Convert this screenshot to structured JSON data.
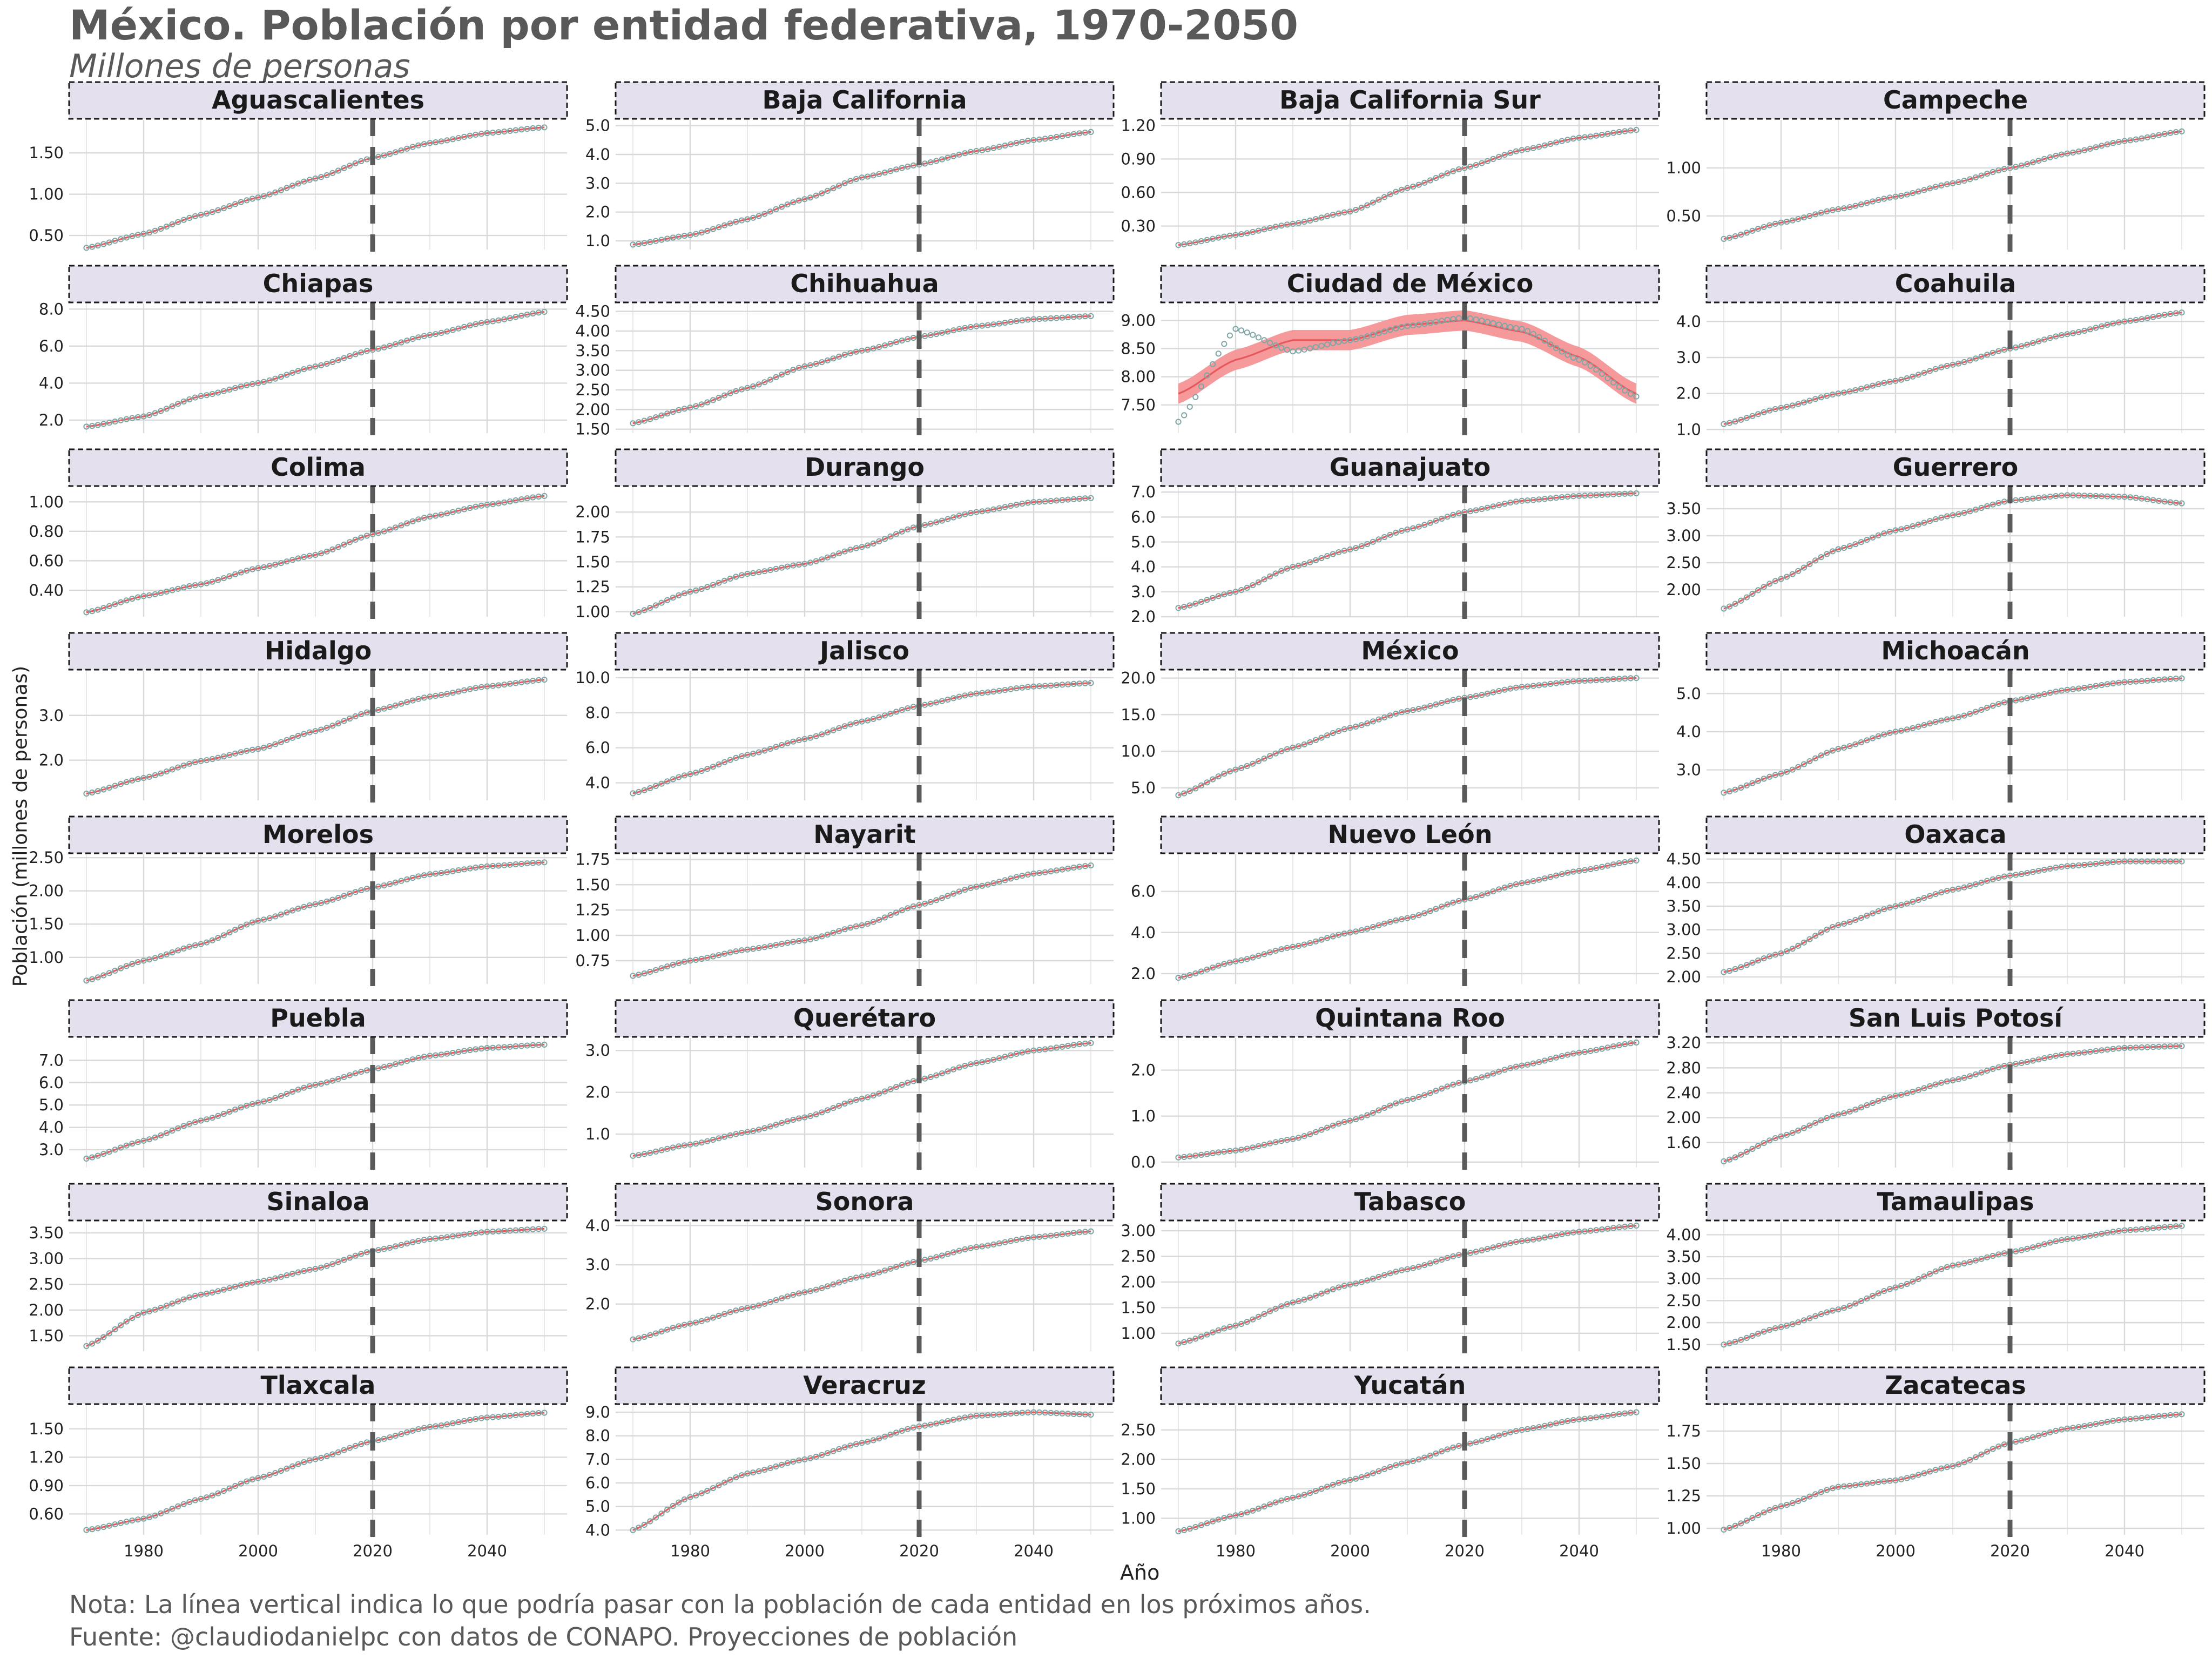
{
  "title": "México. Población por entidad federativa, 1970-2050",
  "subtitle": "Millones de personas",
  "note": "Nota: La línea vertical indica lo que podría pasar con la población de cada entidad en los próximos años.",
  "source": "Fuente: @claudiodanielpc con datos de CONAPO. Proyecciones de población",
  "colors": {
    "point": "#7fa6a6",
    "smooth": "#e8585b",
    "band": "#f49396",
    "vline": "#5a5a5a",
    "strip_fill": "#e5e0ee",
    "strip_border": "#1a1a1a",
    "grid": "#d9d9d9",
    "text": "#595959"
  },
  "chart_data": {
    "type": "line",
    "facet_layout": "4 columns x 8 rows",
    "xlabel": "Año",
    "ylabel": "Población (millones de personas)",
    "xlim": [
      1970,
      2050
    ],
    "x_ticks": [
      1980,
      2000,
      2020,
      2040
    ],
    "x_tick_labels": [
      "1980",
      "2000",
      "2020",
      "2040"
    ],
    "vline_x": 2020,
    "point_shape": "open-circle",
    "smooth_line": true,
    "series_x": [
      1970,
      1980,
      1990,
      2000,
      2010,
      2020,
      2030,
      2040,
      2050
    ],
    "panels": [
      {
        "name": "Aguascalientes",
        "ylim": [
          0.33,
          1.9
        ],
        "yticks": [
          0.5,
          1.0,
          1.5
        ],
        "ytick_labels": [
          "0.50",
          "1.00",
          "1.50"
        ],
        "values": [
          0.35,
          0.52,
          0.75,
          0.96,
          1.19,
          1.44,
          1.62,
          1.74,
          1.81
        ]
      },
      {
        "name": "Baja California",
        "ylim": [
          0.7,
          5.2
        ],
        "yticks": [
          1,
          2,
          3,
          4,
          5
        ],
        "ytick_labels": [
          "1.0",
          "2.0",
          "3.0",
          "4.0",
          "5.0"
        ],
        "values": [
          0.87,
          1.2,
          1.75,
          2.45,
          3.2,
          3.65,
          4.12,
          4.5,
          4.78
        ]
      },
      {
        "name": "Baja California Sur",
        "ylim": [
          0.09,
          1.25
        ],
        "yticks": [
          0.3,
          0.6,
          0.9,
          1.2
        ],
        "ytick_labels": [
          "0.30",
          "0.60",
          "0.90",
          "1.20"
        ],
        "values": [
          0.13,
          0.22,
          0.32,
          0.43,
          0.64,
          0.82,
          0.98,
          1.09,
          1.16
        ]
      },
      {
        "name": "Campeche",
        "ylim": [
          0.15,
          1.5
        ],
        "yticks": [
          0.5,
          1.0
        ],
        "ytick_labels": [
          "0.50",
          "1.00"
        ],
        "values": [
          0.26,
          0.43,
          0.57,
          0.7,
          0.84,
          1.0,
          1.15,
          1.28,
          1.38
        ]
      },
      {
        "name": "Chiapas",
        "ylim": [
          1.3,
          8.3
        ],
        "yticks": [
          2,
          4,
          6,
          8
        ],
        "ytick_labels": [
          "2.0",
          "4.0",
          "6.0",
          "8.0"
        ],
        "values": [
          1.65,
          2.2,
          3.3,
          4.0,
          4.9,
          5.8,
          6.6,
          7.3,
          7.85
        ]
      },
      {
        "name": "Chihuahua",
        "ylim": [
          1.4,
          4.7
        ],
        "yticks": [
          1.5,
          2.0,
          2.5,
          3.0,
          3.5,
          4.0,
          4.5
        ],
        "ytick_labels": [
          "1.50",
          "2.00",
          "2.50",
          "3.00",
          "3.50",
          "4.00",
          "4.50"
        ],
        "values": [
          1.65,
          2.05,
          2.55,
          3.1,
          3.5,
          3.85,
          4.12,
          4.3,
          4.38
        ]
      },
      {
        "name": "Ciudad de México",
        "ylim": [
          7.0,
          9.3
        ],
        "yticks": [
          7.5,
          8.0,
          8.5,
          9.0
        ],
        "ytick_labels": [
          "7.50",
          "8.00",
          "8.50",
          "9.00"
        ],
        "values": [
          7.2,
          8.85,
          8.45,
          8.65,
          8.9,
          9.05,
          8.85,
          8.3,
          7.65
        ],
        "smooth_values": [
          7.7,
          8.3,
          8.65,
          8.65,
          8.92,
          9.0,
          8.8,
          8.35,
          7.7
        ],
        "band": 0.18
      },
      {
        "name": "Coahuila",
        "ylim": [
          0.9,
          4.5
        ],
        "yticks": [
          1,
          2,
          3,
          4
        ],
        "ytick_labels": [
          "1.0",
          "2.0",
          "3.0",
          "4.0"
        ],
        "values": [
          1.15,
          1.6,
          2.0,
          2.35,
          2.8,
          3.25,
          3.65,
          4.0,
          4.25
        ]
      },
      {
        "name": "Colima",
        "ylim": [
          0.22,
          1.1
        ],
        "yticks": [
          0.4,
          0.6,
          0.8,
          1.0
        ],
        "ytick_labels": [
          "0.40",
          "0.60",
          "0.80",
          "1.00"
        ],
        "values": [
          0.25,
          0.36,
          0.44,
          0.55,
          0.64,
          0.78,
          0.9,
          0.98,
          1.04
        ]
      },
      {
        "name": "Durango",
        "ylim": [
          0.95,
          2.25
        ],
        "yticks": [
          1.0,
          1.25,
          1.5,
          1.75,
          2.0
        ],
        "ytick_labels": [
          "1.00",
          "1.25",
          "1.50",
          "1.75",
          "2.00"
        ],
        "values": [
          0.98,
          1.2,
          1.38,
          1.48,
          1.65,
          1.86,
          2.0,
          2.1,
          2.14
        ]
      },
      {
        "name": "Guanajuato",
        "ylim": [
          2.0,
          7.2
        ],
        "yticks": [
          2,
          3,
          4,
          5,
          6,
          7
        ],
        "ytick_labels": [
          "2.0",
          "3.0",
          "4.0",
          "5.0",
          "6.0",
          "7.0"
        ],
        "values": [
          2.35,
          3.0,
          4.0,
          4.7,
          5.5,
          6.2,
          6.65,
          6.85,
          6.95
        ]
      },
      {
        "name": "Guerrero",
        "ylim": [
          1.5,
          3.9
        ],
        "yticks": [
          2.0,
          2.5,
          3.0,
          3.5
        ],
        "ytick_labels": [
          "2.00",
          "2.50",
          "3.00",
          "3.50"
        ],
        "values": [
          1.65,
          2.2,
          2.75,
          3.1,
          3.38,
          3.65,
          3.75,
          3.72,
          3.6
        ]
      },
      {
        "name": "Hidalgo",
        "ylim": [
          1.1,
          4.0
        ],
        "yticks": [
          2.0,
          3.0
        ],
        "ytick_labels": [
          "2.0",
          "3.0"
        ],
        "values": [
          1.25,
          1.6,
          1.98,
          2.25,
          2.65,
          3.1,
          3.42,
          3.65,
          3.8
        ]
      },
      {
        "name": "Jalisco",
        "ylim": [
          3.0,
          10.4
        ],
        "yticks": [
          4,
          6,
          8,
          10
        ],
        "ytick_labels": [
          "4.0",
          "6.0",
          "8.0",
          "10.0"
        ],
        "values": [
          3.4,
          4.5,
          5.6,
          6.5,
          7.5,
          8.4,
          9.1,
          9.5,
          9.7
        ]
      },
      {
        "name": "México",
        "ylim": [
          3.3,
          21.0
        ],
        "yticks": [
          5,
          10,
          15,
          20
        ],
        "ytick_labels": [
          "5.0",
          "10.0",
          "15.0",
          "20.0"
        ],
        "values": [
          4.0,
          7.5,
          10.5,
          13.2,
          15.5,
          17.3,
          18.8,
          19.6,
          20.0
        ]
      },
      {
        "name": "Michoacán",
        "ylim": [
          2.2,
          5.6
        ],
        "yticks": [
          3.0,
          4.0,
          5.0
        ],
        "ytick_labels": [
          "3.0",
          "4.0",
          "5.0"
        ],
        "values": [
          2.4,
          2.9,
          3.55,
          4.0,
          4.35,
          4.8,
          5.1,
          5.3,
          5.4
        ]
      },
      {
        "name": "Morelos",
        "ylim": [
          0.6,
          2.55
        ],
        "yticks": [
          1.0,
          1.5,
          2.0,
          2.5
        ],
        "ytick_labels": [
          "1.00",
          "1.50",
          "2.00",
          "2.50"
        ],
        "values": [
          0.65,
          0.95,
          1.2,
          1.55,
          1.8,
          2.05,
          2.25,
          2.37,
          2.43
        ]
      },
      {
        "name": "Nayarit",
        "ylim": [
          0.52,
          1.8
        ],
        "yticks": [
          0.75,
          1.0,
          1.25,
          1.5,
          1.75
        ],
        "ytick_labels": [
          "0.75",
          "1.00",
          "1.25",
          "1.50",
          "1.75"
        ],
        "values": [
          0.6,
          0.75,
          0.86,
          0.95,
          1.1,
          1.3,
          1.48,
          1.61,
          1.69
        ]
      },
      {
        "name": "Nuevo León",
        "ylim": [
          1.5,
          7.8
        ],
        "yticks": [
          2,
          4,
          6
        ],
        "ytick_labels": [
          "2.0",
          "4.0",
          "6.0"
        ],
        "values": [
          1.8,
          2.6,
          3.3,
          4.0,
          4.7,
          5.6,
          6.4,
          7.0,
          7.5
        ]
      },
      {
        "name": "Oaxaca",
        "ylim": [
          1.85,
          4.6
        ],
        "yticks": [
          2.0,
          2.5,
          3.0,
          3.5,
          4.0,
          4.5
        ],
        "ytick_labels": [
          "2.00",
          "2.50",
          "3.00",
          "3.50",
          "4.00",
          "4.50"
        ],
        "values": [
          2.1,
          2.5,
          3.1,
          3.5,
          3.85,
          4.15,
          4.35,
          4.45,
          4.45
        ]
      },
      {
        "name": "Puebla",
        "ylim": [
          2.2,
          8.0
        ],
        "yticks": [
          3,
          4,
          5,
          6,
          7
        ],
        "ytick_labels": [
          "3.0",
          "4.0",
          "5.0",
          "6.0",
          "7.0"
        ],
        "values": [
          2.6,
          3.4,
          4.3,
          5.1,
          5.9,
          6.6,
          7.2,
          7.55,
          7.7
        ]
      },
      {
        "name": "Querétaro",
        "ylim": [
          0.2,
          3.3
        ],
        "yticks": [
          1,
          2,
          3
        ],
        "ytick_labels": [
          "1.0",
          "2.0",
          "3.0"
        ],
        "values": [
          0.48,
          0.75,
          1.05,
          1.4,
          1.85,
          2.3,
          2.7,
          3.0,
          3.18
        ]
      },
      {
        "name": "Quintana Roo",
        "ylim": [
          -0.12,
          2.7
        ],
        "yticks": [
          0,
          1,
          2
        ],
        "ytick_labels": [
          "0.0",
          "1.0",
          "2.0"
        ],
        "values": [
          0.1,
          0.25,
          0.5,
          0.9,
          1.35,
          1.75,
          2.1,
          2.38,
          2.6
        ]
      },
      {
        "name": "San Luis Potosí",
        "ylim": [
          1.2,
          3.28
        ],
        "yticks": [
          1.6,
          2.0,
          2.4,
          2.8,
          3.2
        ],
        "ytick_labels": [
          "1.60",
          "2.00",
          "2.40",
          "2.80",
          "3.20"
        ],
        "values": [
          1.3,
          1.7,
          2.05,
          2.35,
          2.6,
          2.85,
          3.02,
          3.12,
          3.15
        ]
      },
      {
        "name": "Sinaloa",
        "ylim": [
          1.2,
          3.72
        ],
        "yticks": [
          1.5,
          2.0,
          2.5,
          3.0,
          3.5
        ],
        "ytick_labels": [
          "1.50",
          "2.00",
          "2.50",
          "3.00",
          "3.50"
        ],
        "values": [
          1.3,
          1.95,
          2.3,
          2.55,
          2.8,
          3.15,
          3.38,
          3.52,
          3.58
        ]
      },
      {
        "name": "Sonora",
        "ylim": [
          0.8,
          4.1
        ],
        "yticks": [
          2.0,
          3.0,
          4.0
        ],
        "ytick_labels": [
          "2.0",
          "3.0",
          "4.0"
        ],
        "values": [
          1.1,
          1.5,
          1.9,
          2.3,
          2.7,
          3.1,
          3.45,
          3.7,
          3.85
        ]
      },
      {
        "name": "Tabasco",
        "ylim": [
          0.65,
          3.18
        ],
        "yticks": [
          1.0,
          1.5,
          2.0,
          2.5,
          3.0
        ],
        "ytick_labels": [
          "1.00",
          "1.50",
          "2.00",
          "2.50",
          "3.00"
        ],
        "values": [
          0.8,
          1.15,
          1.6,
          1.95,
          2.25,
          2.55,
          2.8,
          2.98,
          3.1
        ]
      },
      {
        "name": "Tamaulipas",
        "ylim": [
          1.35,
          4.3
        ],
        "yticks": [
          1.5,
          2.0,
          2.5,
          3.0,
          3.5,
          4.0
        ],
        "ytick_labels": [
          "1.50",
          "2.00",
          "2.50",
          "3.00",
          "3.50",
          "4.00"
        ],
        "values": [
          1.5,
          1.9,
          2.3,
          2.8,
          3.3,
          3.6,
          3.9,
          4.1,
          4.2
        ]
      },
      {
        "name": "Tlaxcala",
        "ylim": [
          0.38,
          1.75
        ],
        "yticks": [
          0.6,
          0.9,
          1.2,
          1.5
        ],
        "ytick_labels": [
          "0.60",
          "0.90",
          "1.20",
          "1.50"
        ],
        "values": [
          0.43,
          0.55,
          0.76,
          0.98,
          1.18,
          1.37,
          1.52,
          1.62,
          1.67
        ]
      },
      {
        "name": "Veracruz",
        "ylim": [
          3.8,
          9.3
        ],
        "yticks": [
          4,
          5,
          6,
          7,
          8,
          9
        ],
        "ytick_labels": [
          "4.0",
          "5.0",
          "6.0",
          "7.0",
          "8.0",
          "9.0"
        ],
        "values": [
          4.0,
          5.4,
          6.4,
          7.0,
          7.7,
          8.4,
          8.85,
          9.0,
          8.9
        ]
      },
      {
        "name": "Yucatán",
        "ylim": [
          0.72,
          2.92
        ],
        "yticks": [
          1.0,
          1.5,
          2.0,
          2.5
        ],
        "ytick_labels": [
          "1.00",
          "1.50",
          "2.00",
          "2.50"
        ],
        "values": [
          0.78,
          1.05,
          1.35,
          1.65,
          1.95,
          2.25,
          2.5,
          2.68,
          2.8
        ]
      },
      {
        "name": "Zacatecas",
        "ylim": [
          0.95,
          1.95
        ],
        "yticks": [
          1.0,
          1.25,
          1.5,
          1.75
        ],
        "ytick_labels": [
          "1.00",
          "1.25",
          "1.50",
          "1.75"
        ],
        "values": [
          0.99,
          1.17,
          1.32,
          1.37,
          1.48,
          1.66,
          1.77,
          1.84,
          1.88
        ]
      }
    ]
  }
}
